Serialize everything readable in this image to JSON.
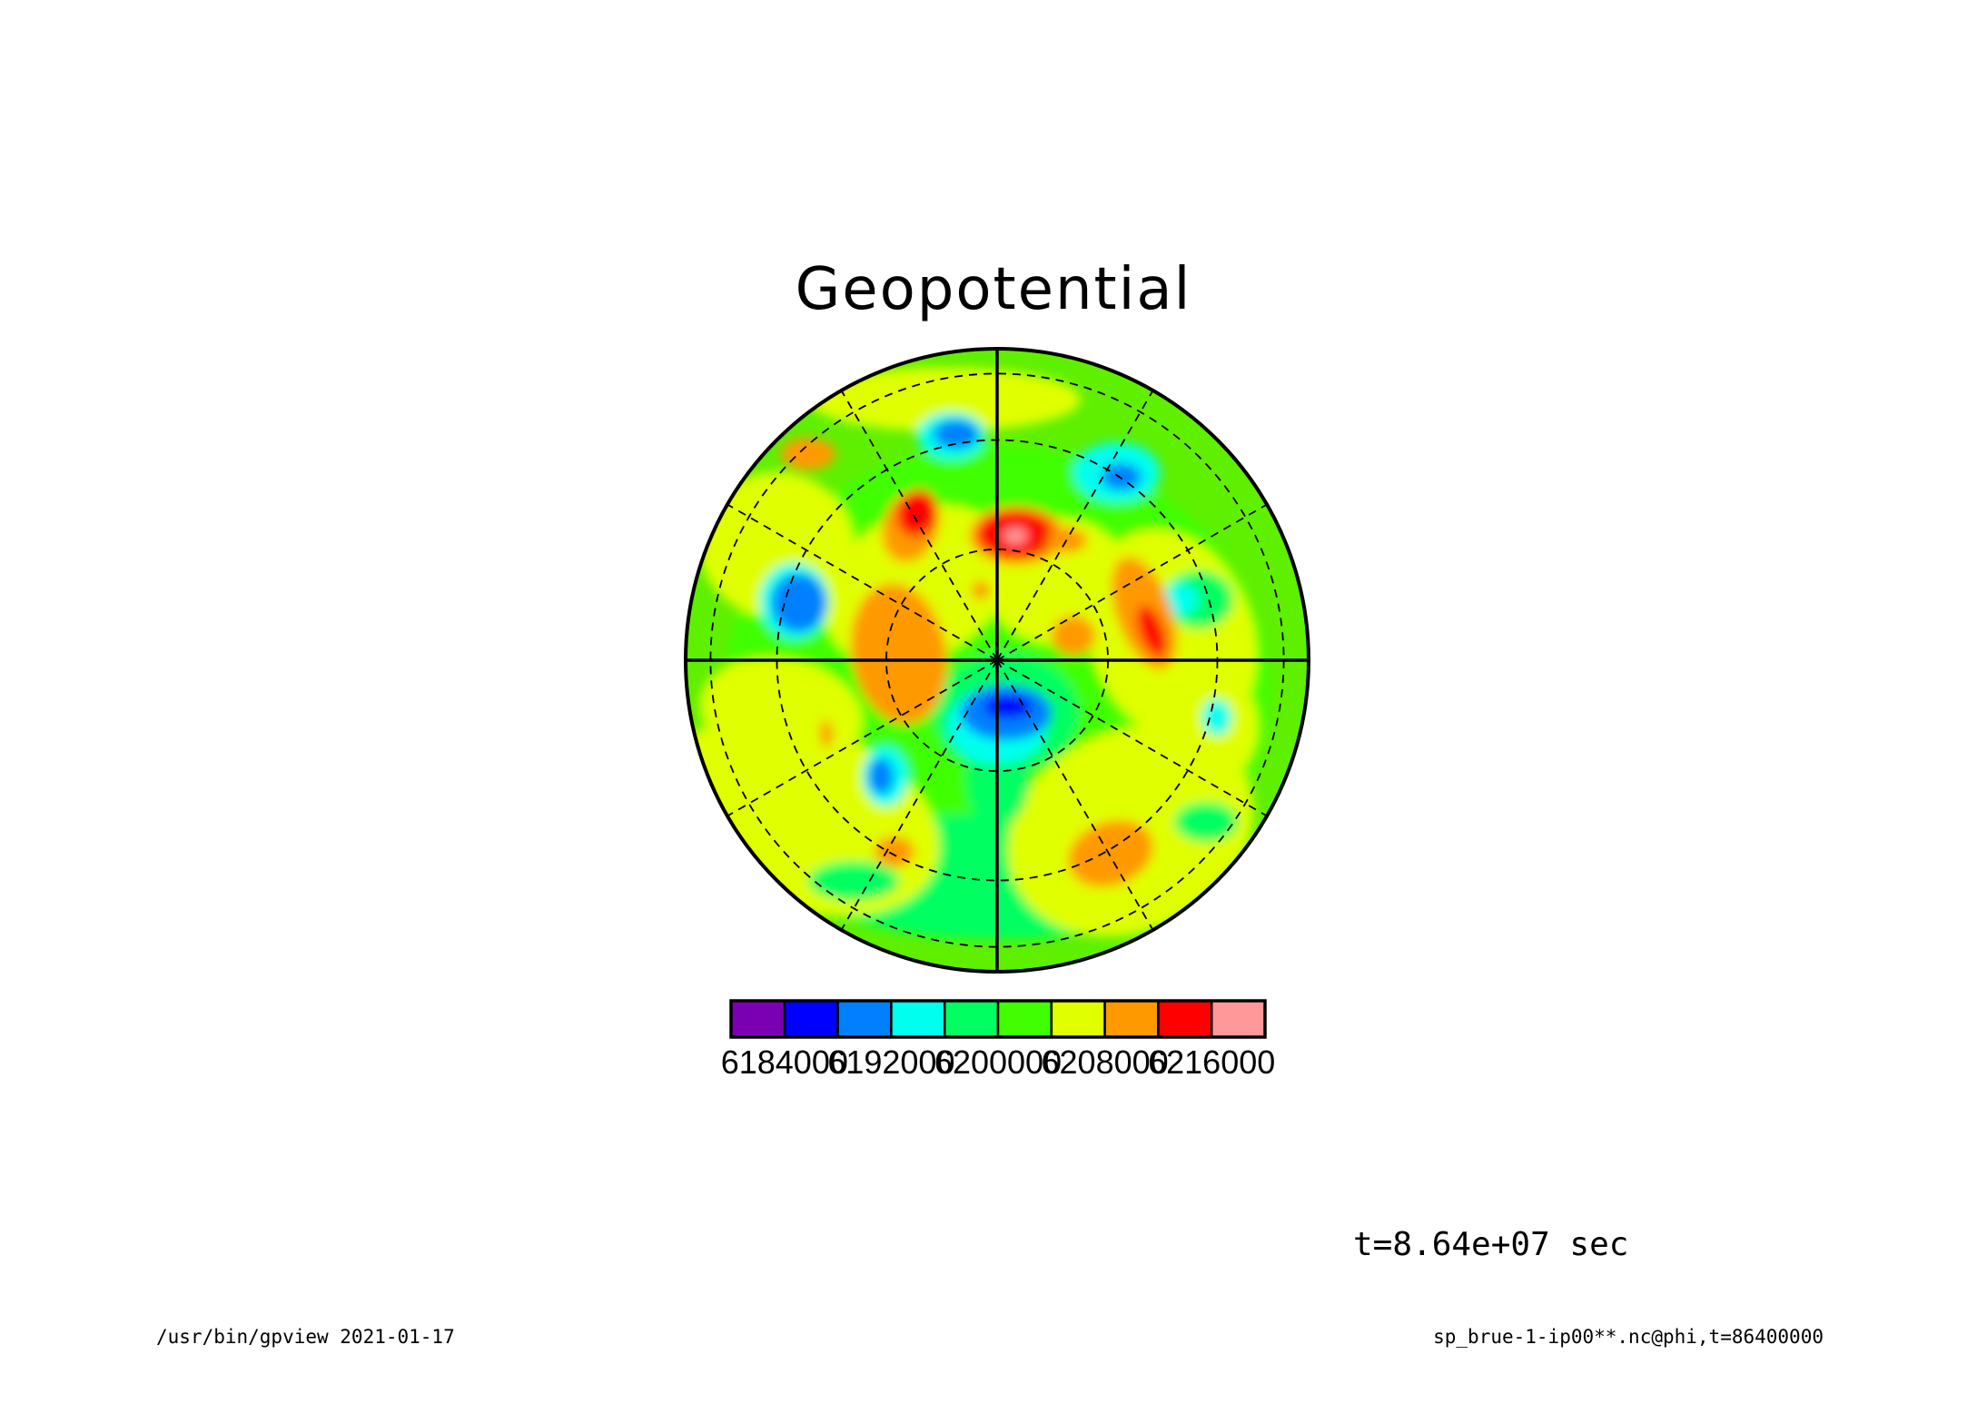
{
  "title": "Geopotential",
  "time_label": "t=8.64e+07 sec",
  "footer_left": "/usr/bin/gpview  2021-01-17",
  "footer_right": "sp_brue-1-ip00**.nc@phi,t=86400000",
  "colorbar": {
    "colors": [
      "#7b00b3",
      "#0000ff",
      "#0080ff",
      "#00ffee",
      "#00ff60",
      "#40ff00",
      "#e0ff00",
      "#ff9900",
      "#ff0000",
      "#ff9999"
    ],
    "tick_labels": [
      "6184000",
      "6192000",
      "6200000",
      "6208000",
      "6216000"
    ]
  },
  "map": {
    "projection": "polar stereographic",
    "background_color": "#5ff000",
    "meridians_dashed": true,
    "latitude_circles_dashed": true
  }
}
